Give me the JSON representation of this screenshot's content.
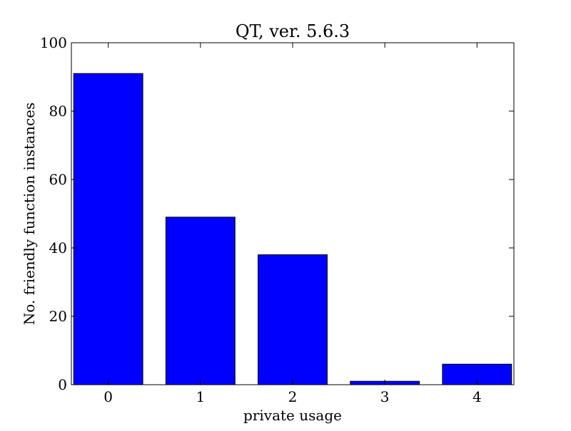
{
  "chart_data": {
    "type": "bar",
    "title": "QT, ver. 5.6.3",
    "xlabel": "private usage",
    "ylabel": "No. friendly function instances",
    "categories": [
      "0",
      "1",
      "2",
      "3",
      "4"
    ],
    "values": [
      91,
      49,
      38,
      1,
      6
    ],
    "ylim": [
      0,
      100
    ],
    "yticks": [
      "0",
      "20",
      "40",
      "60",
      "80",
      "100"
    ],
    "bar_color": "#0000ff",
    "grid": false
  }
}
